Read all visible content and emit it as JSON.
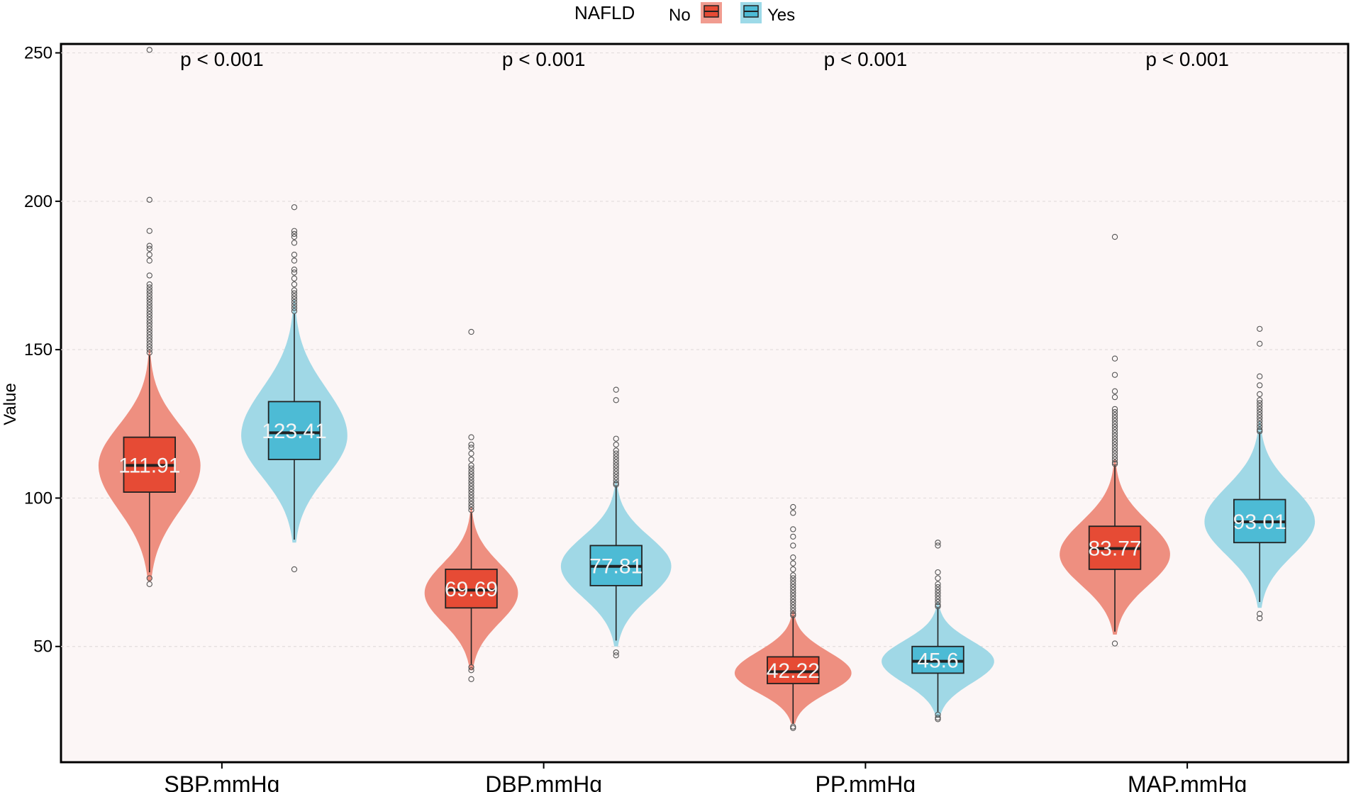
{
  "chart_data": {
    "type": "violin-box",
    "ylabel": "Value",
    "xlabel": "",
    "ylim": [
      11,
      253
    ],
    "yticks": [
      50,
      100,
      150,
      200,
      250
    ],
    "legend": {
      "title": "NAFLD",
      "position": "top",
      "entries": [
        {
          "label": "No",
          "color": "#E64B35"
        },
        {
          "label": "Yes",
          "color": "#4DBBD5"
        }
      ]
    },
    "categories": [
      "SBP,mmHg",
      "DBP,mmHg",
      "PP,mmHg",
      "MAP,mmHg"
    ],
    "annotations": [
      "p < 0.001",
      "p < 0.001",
      "p < 0.001",
      "p < 0.001"
    ],
    "annotation_y": 248,
    "groups": [
      {
        "name": "No",
        "color": "#E64B35",
        "violin_color": "#EE8F80",
        "series": [
          {
            "category": "SBP,mmHg",
            "mean_label": "111.91",
            "median": 111,
            "q1": 102,
            "q3": 120.5,
            "whisker_low": 75,
            "whisker_high": 148,
            "violin_min": 72,
            "violin_max": 150,
            "violin_peak": 111,
            "violin_halfwidth": 0.48,
            "outliers": [
              71,
              73,
              149,
              150,
              151,
              152,
              153,
              154,
              155,
              156,
              157,
              158,
              159,
              160,
              161,
              162,
              163,
              164,
              165,
              166,
              167,
              168,
              169,
              170,
              171,
              172,
              175,
              180,
              182,
              184,
              185,
              190,
              200.5,
              251
            ]
          },
          {
            "category": "DBP,mmHg",
            "mean_label": "69.69",
            "median": 69,
            "q1": 63,
            "q3": 76,
            "whisker_low": 44,
            "whisker_high": 95,
            "violin_min": 42,
            "violin_max": 97,
            "violin_peak": 68,
            "violin_halfwidth": 0.44,
            "outliers": [
              39,
              42,
              43,
              96,
              97,
              98,
              99,
              100,
              101,
              102,
              103,
              104,
              105,
              106,
              107,
              108,
              109,
              110,
              111,
              113,
              115,
              117,
              118,
              120.5,
              156
            ]
          },
          {
            "category": "PP,mmHg",
            "mean_label": "42.22",
            "median": 41.5,
            "q1": 37.5,
            "q3": 46.5,
            "whisker_low": 24,
            "whisker_high": 60,
            "violin_min": 24,
            "violin_max": 62,
            "violin_peak": 41,
            "violin_halfwidth": 0.55,
            "outliers": [
              22.5,
              23,
              60.5,
              61,
              62,
              63,
              64,
              65,
              66,
              67,
              68,
              69,
              70,
              71,
              72,
              73,
              74,
              76,
              78,
              80,
              84,
              87,
              89.5,
              95,
              97
            ]
          },
          {
            "category": "MAP,mmHg",
            "mean_label": "83.77",
            "median": 83,
            "q1": 76,
            "q3": 90.5,
            "whisker_low": 55,
            "whisker_high": 111,
            "violin_min": 54,
            "violin_max": 113,
            "violin_peak": 81,
            "violin_halfwidth": 0.52,
            "outliers": [
              51,
              111.5,
              112,
              113,
              114,
              115,
              116,
              117,
              118,
              119,
              120,
              121,
              122,
              123,
              124,
              125,
              126,
              127,
              128,
              129,
              130,
              134,
              136,
              141.5,
              147,
              188
            ]
          }
        ]
      },
      {
        "name": "Yes",
        "color": "#4DBBD5",
        "violin_color": "#A0D8E6",
        "series": [
          {
            "category": "SBP,mmHg",
            "mean_label": "123.41",
            "median": 122,
            "q1": 113,
            "q3": 132.5,
            "whisker_low": 86,
            "whisker_high": 162,
            "violin_min": 85,
            "violin_max": 167,
            "violin_peak": 121,
            "violin_halfwidth": 0.5,
            "outliers": [
              76,
              163,
              164,
              165,
              166,
              167,
              168,
              169,
              170,
              172,
              174,
              176,
              177,
              180,
              182,
              186,
              188,
              189,
              190,
              198
            ]
          },
          {
            "category": "DBP,mmHg",
            "mean_label": "77.81",
            "median": 77,
            "q1": 70.5,
            "q3": 84,
            "whisker_low": 52,
            "whisker_high": 104,
            "violin_min": 50,
            "violin_max": 106,
            "violin_peak": 77,
            "violin_halfwidth": 0.52,
            "outliers": [
              47,
              48,
              104.5,
              105,
              106,
              107,
              108,
              109,
              110,
              111,
              112,
              113,
              114,
              115,
              116,
              118,
              120,
              133,
              136.5
            ]
          },
          {
            "category": "PP,mmHg",
            "mean_label": "45.6",
            "median": 45,
            "q1": 41,
            "q3": 50,
            "whisker_low": 28,
            "whisker_high": 63,
            "violin_min": 26,
            "violin_max": 65,
            "violin_peak": 45,
            "violin_halfwidth": 0.53,
            "outliers": [
              25.5,
              26,
              27,
              63.5,
              64,
              65,
              66,
              67,
              68,
              69,
              70,
              71,
              73,
              75,
              84,
              85
            ]
          },
          {
            "category": "MAP,mmHg",
            "mean_label": "93.01",
            "median": 92,
            "q1": 85,
            "q3": 99.5,
            "whisker_low": 65,
            "whisker_high": 122,
            "violin_min": 63,
            "violin_max": 126,
            "violin_peak": 92,
            "violin_halfwidth": 0.52,
            "outliers": [
              59.5,
              61,
              122.5,
              123,
              124,
              125,
              126,
              127,
              128,
              129,
              130,
              131,
              132,
              133,
              135,
              138,
              141,
              152,
              157
            ]
          }
        ]
      }
    ]
  }
}
